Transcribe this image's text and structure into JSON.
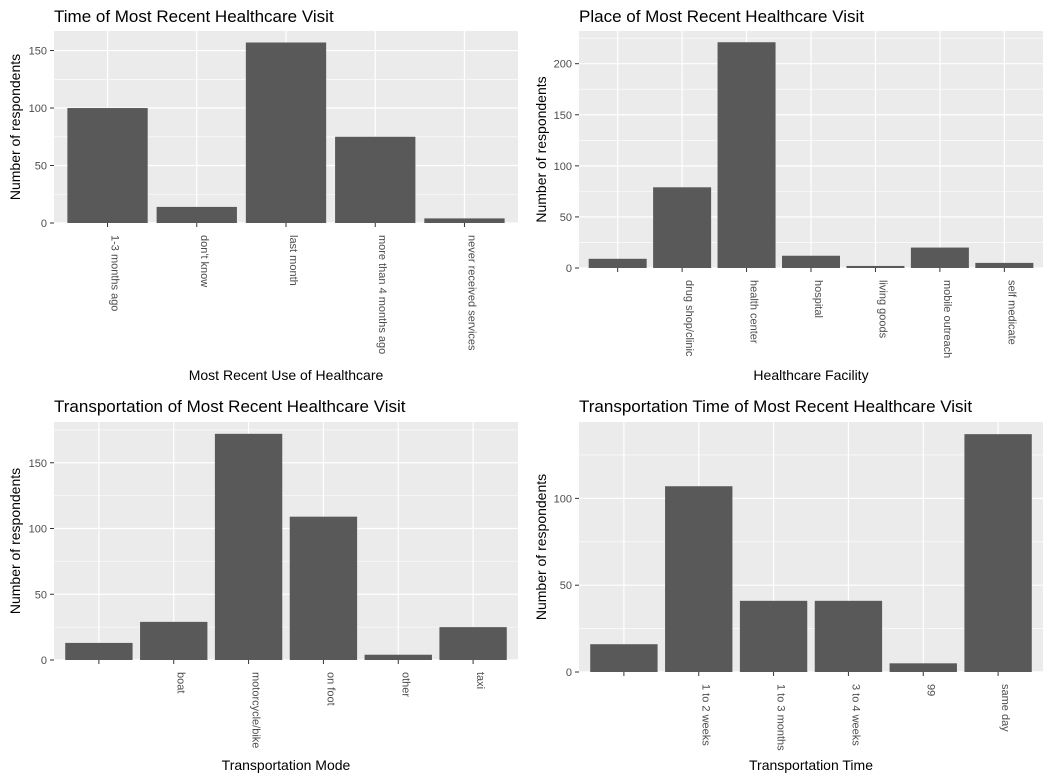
{
  "chart_data": [
    {
      "type": "bar",
      "title": "Time of Most Recent Healthcare Visit",
      "xlabel": "Most Recent Use of Healthcare",
      "ylabel": "Number of respondents",
      "categories": [
        "1-3 months ago",
        "don't know",
        "last month",
        "more than 4 months ago",
        "never received services"
      ],
      "values": [
        100,
        14,
        157,
        75,
        4
      ],
      "ylim": [
        0,
        167
      ],
      "yticks": [
        0,
        50,
        100,
        150
      ],
      "grid": true,
      "color": "#595959",
      "panel_color": "#ebebeb"
    },
    {
      "type": "bar",
      "title": "Place of Most Recent Healthcare Visit",
      "xlabel": "Healthcare Facility",
      "ylabel": "Number of respondents",
      "categories": [
        "",
        "drug shop/clinic",
        "health center",
        "hospital",
        "living goods",
        "mobile outreach",
        "self medicate"
      ],
      "values": [
        9,
        79,
        221,
        12,
        2,
        20,
        5
      ],
      "ylim": [
        0,
        232
      ],
      "yticks": [
        0,
        50,
        100,
        150,
        200
      ],
      "grid": true,
      "color": "#595959",
      "panel_color": "#ebebeb"
    },
    {
      "type": "bar",
      "title": "Transportation of Most Recent Healthcare Visit",
      "xlabel": "Transportation Mode",
      "ylabel": "Number of respondents",
      "categories": [
        "",
        "boat",
        "motorcycle/bike",
        "on foot",
        "other",
        "taxi"
      ],
      "values": [
        13,
        29,
        172,
        109,
        4,
        25
      ],
      "ylim": [
        0,
        181
      ],
      "yticks": [
        0,
        50,
        100,
        150
      ],
      "grid": true,
      "color": "#595959",
      "panel_color": "#ebebeb"
    },
    {
      "type": "bar",
      "title": "Transportation Time of Most Recent Healthcare Visit",
      "xlabel": "Transportation Time",
      "ylabel": "Number of respondents",
      "categories": [
        "",
        "1 to 2 weeks",
        "1 to 3 months",
        "3 to 4 weeks",
        "99",
        "same day"
      ],
      "values": [
        16,
        107,
        41,
        41,
        5,
        137
      ],
      "ylim": [
        0,
        144
      ],
      "yticks": [
        0,
        50,
        100
      ],
      "grid": true,
      "color": "#595959",
      "panel_color": "#ebebeb"
    }
  ]
}
